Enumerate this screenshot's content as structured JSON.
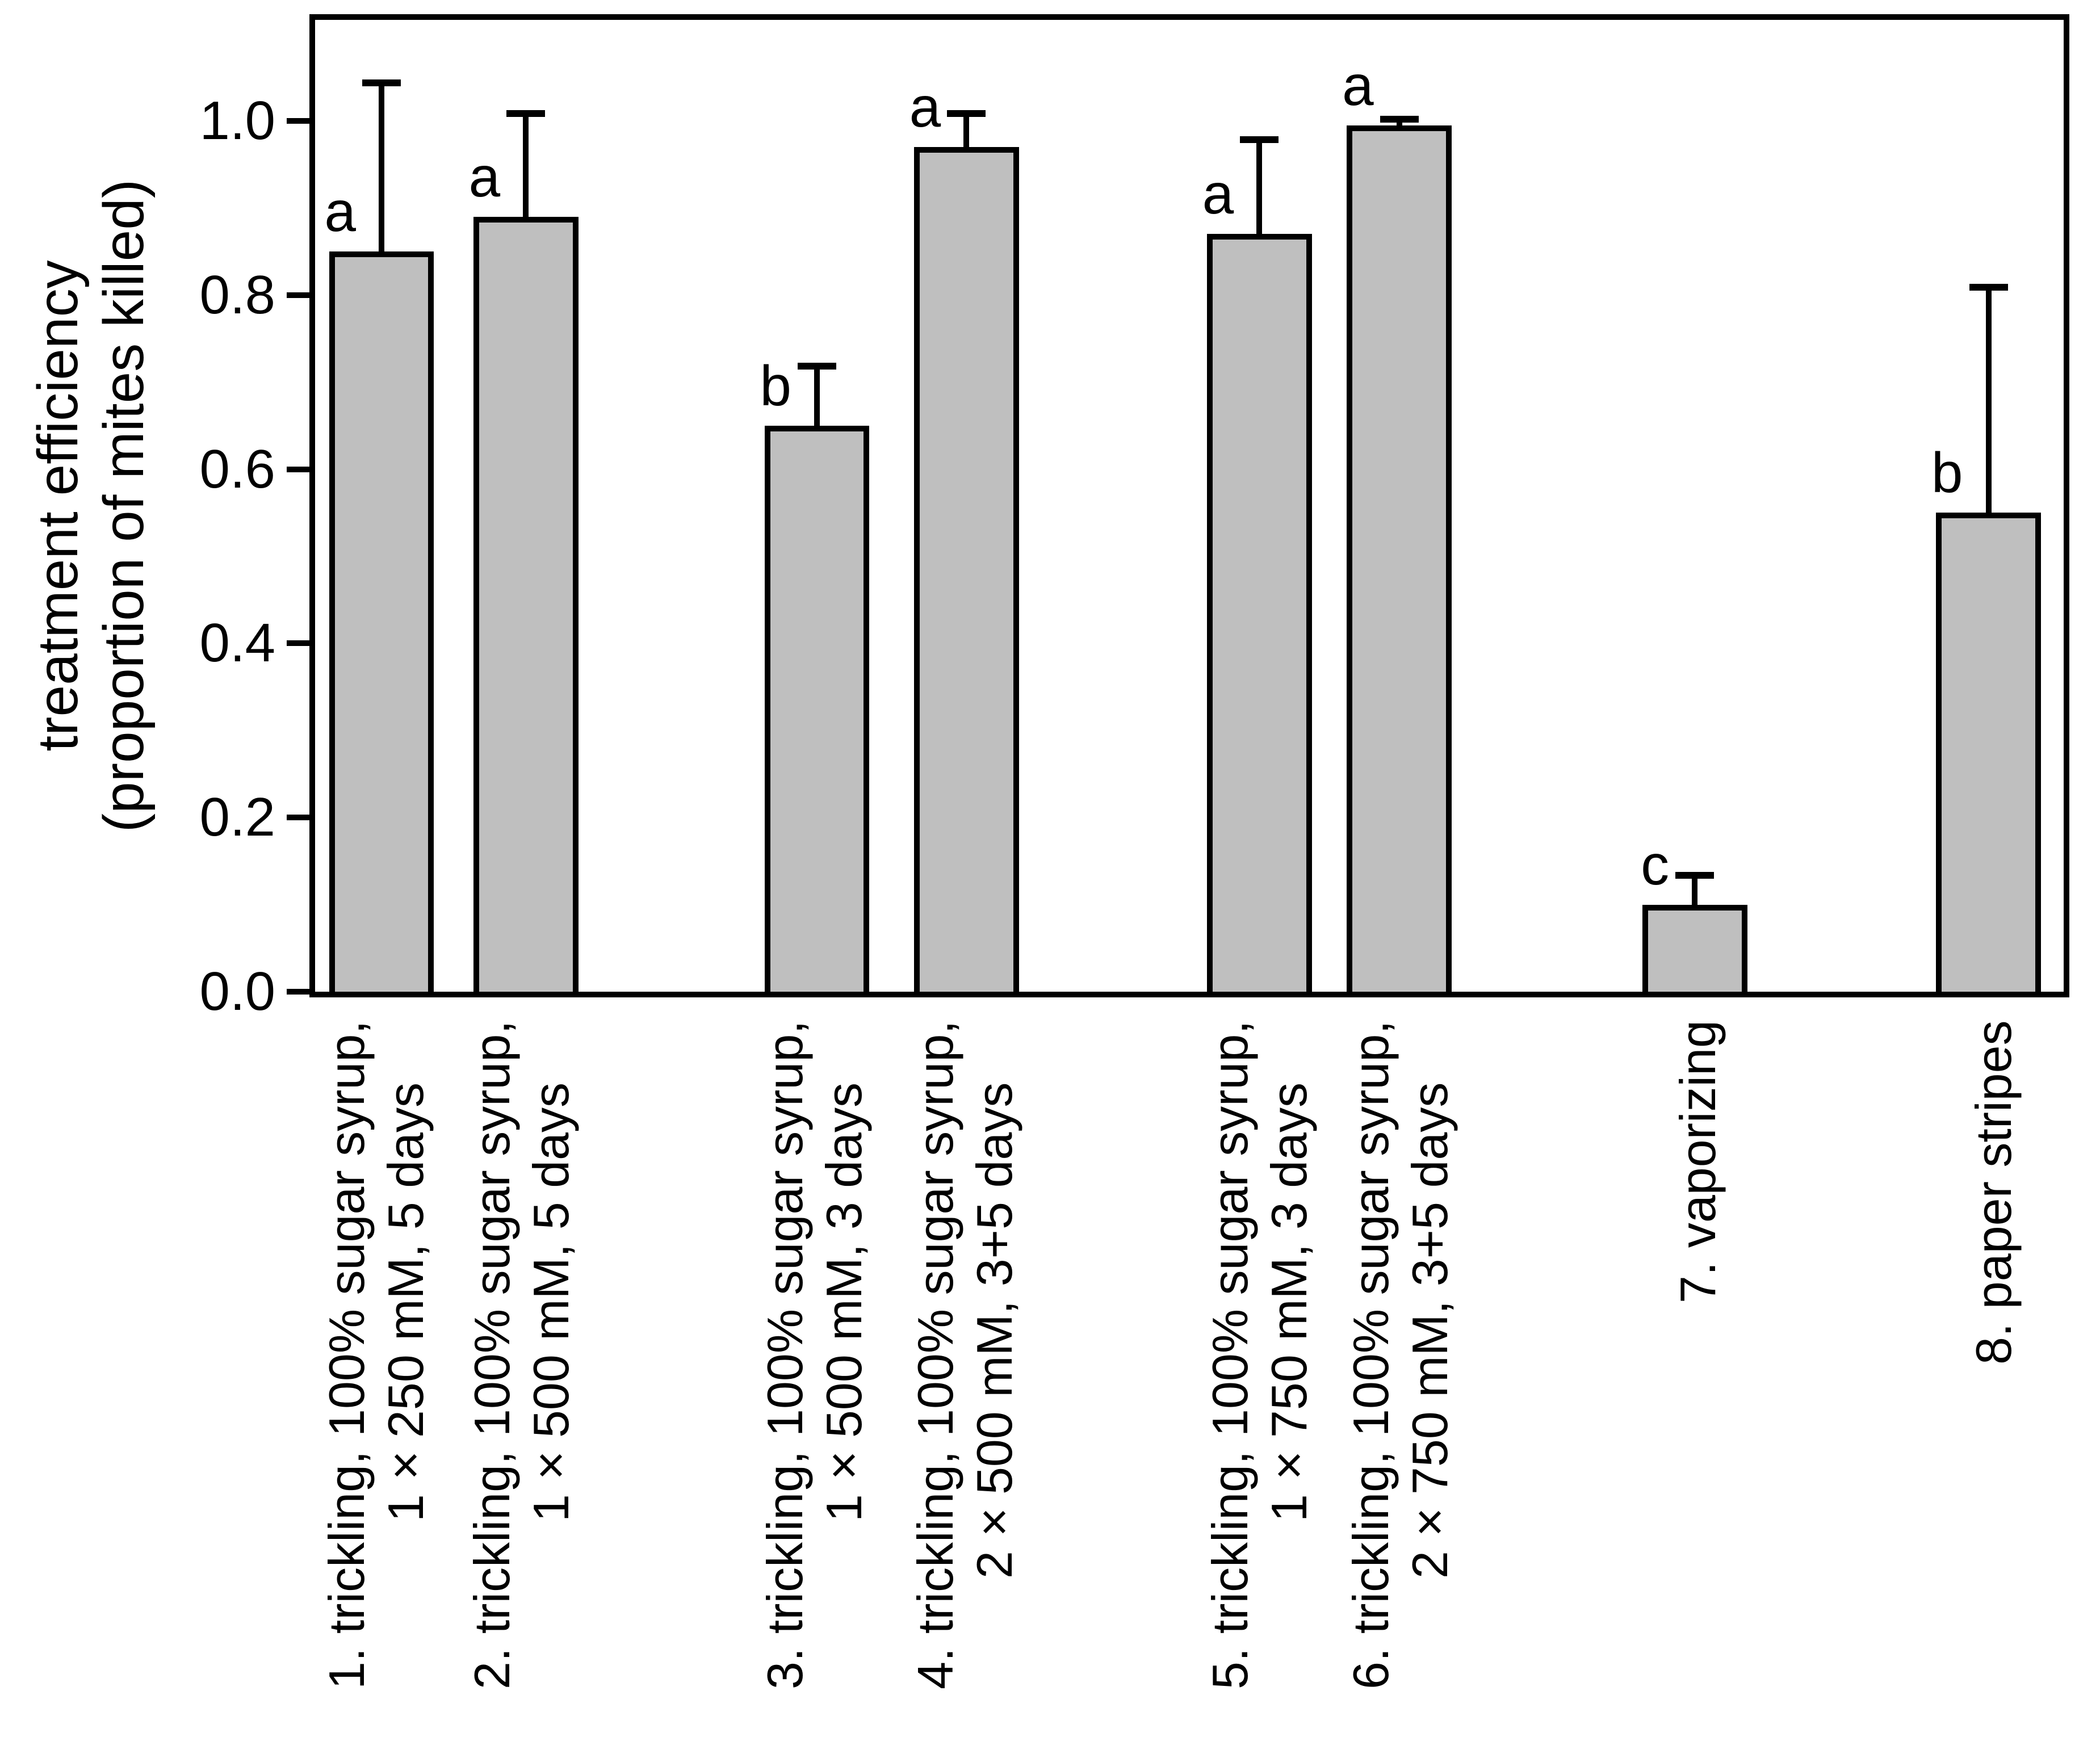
{
  "chart_data": {
    "type": "bar",
    "title": "",
    "xlabel": "",
    "ylabel_line1": "treatment efficiency",
    "ylabel_line2": "(proportion of mites killed)",
    "ylim": [
      0,
      1.122
    ],
    "ytick_labels": [
      "0.0",
      "0.2",
      "0.4",
      "0.6",
      "0.8",
      "1.0"
    ],
    "ytick_values": [
      0.0,
      0.2,
      0.4,
      0.6,
      0.8,
      1.0
    ],
    "grid": false,
    "legend": false,
    "bar_color": "#bfbfbf",
    "axis_color": "#000000",
    "categories": [
      [
        "1. trickling, 100% sugar syrup,",
        "1×250 mM, 5 days"
      ],
      [
        "2. trickling, 100% sugar syrup,",
        "1×500 mM, 5 days"
      ],
      [
        "3. trickling, 100% sugar syrup,",
        "1×500 mM, 3 days"
      ],
      [
        "4. trickling, 100% sugar syrup,",
        "2×500 mM, 3+5 days"
      ],
      [
        "5. trickling, 100% sugar syrup,",
        "1×750 mM, 3 days"
      ],
      [
        "6. trickling, 100% sugar syrup,",
        "2×750 mM, 3+5 days"
      ],
      [
        "7. vaporizing"
      ],
      [
        "8. paper stripes"
      ]
    ],
    "values": [
      0.85,
      0.89,
      0.65,
      0.97,
      0.87,
      0.995,
      0.1,
      0.55
    ],
    "error_upper": [
      0.195,
      0.12,
      0.07,
      0.04,
      0.11,
      0.008,
      0.035,
      0.26
    ],
    "sig_letters": [
      "a",
      "a",
      "b",
      "a",
      "a",
      "a",
      "c",
      "b"
    ],
    "bar_centers_pct": [
      3.8,
      12.05,
      28.7,
      37.25,
      54.0,
      62.0,
      78.9,
      95.7
    ],
    "bar_width_pct": 6.0
  }
}
